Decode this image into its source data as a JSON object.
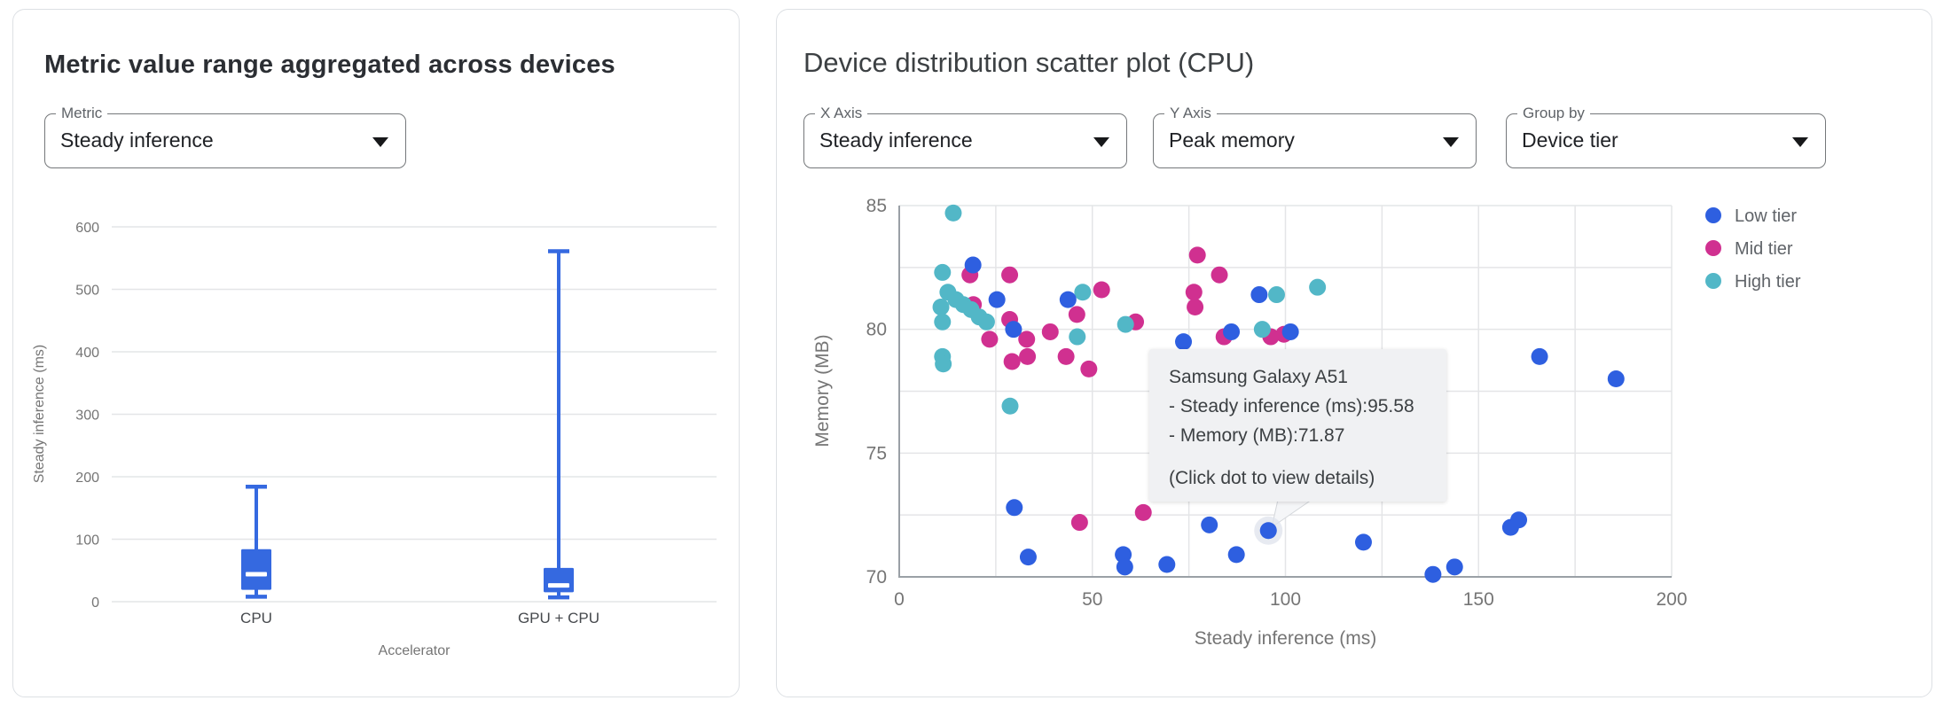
{
  "left_panel": {
    "title": "Metric value range aggregated across devices",
    "metric_select": {
      "label": "Metric",
      "value": "Steady inference"
    }
  },
  "right_panel": {
    "title": "Device distribution scatter plot (CPU)",
    "x_select": {
      "label": "X Axis",
      "value": "Steady inference"
    },
    "y_select": {
      "label": "Y Axis",
      "value": "Peak memory"
    },
    "group_select": {
      "label": "Group by",
      "value": "Device tier"
    },
    "tooltip": {
      "device": "Samsung Galaxy A51",
      "line1": "- Steady inference (ms):95.58",
      "line2": "- Memory (MB):71.87",
      "hint": "(Click dot to view details)"
    }
  },
  "colors": {
    "box_blue": "#3569e0",
    "low_tier_blue": "#2e5fe0",
    "mid_tier_magenta": "#d03090",
    "high_tier_teal": "#52b7c7"
  },
  "chart_data": [
    {
      "type": "boxplot",
      "title": "Metric value range aggregated across devices",
      "xlabel": "Accelerator",
      "ylabel": "Steady inference (ms)",
      "ylim": [
        0,
        600
      ],
      "yticks": [
        0,
        100,
        200,
        300,
        400,
        500,
        600
      ],
      "grid": "horizontal only",
      "categories": [
        "CPU",
        "GPU + CPU"
      ],
      "boxes": [
        {
          "category": "CPU",
          "min": 8,
          "q1": 19,
          "median": 44,
          "q3": 84,
          "max": 184
        },
        {
          "category": "GPU + CPU",
          "min": 7,
          "q1": 15,
          "median": 26,
          "q3": 54,
          "max": 561
        }
      ]
    },
    {
      "type": "scatter",
      "title": "Device distribution scatter plot (CPU)",
      "xlabel": "Steady inference (ms)",
      "ylabel": "Memory (MB)",
      "xlim": [
        0,
        200
      ],
      "ylim": [
        70,
        85
      ],
      "xticks": [
        0,
        50,
        100,
        150,
        200
      ],
      "yticks": [
        70,
        75,
        80,
        85
      ],
      "grid": "on (minor gridlines every 25 ms / 2.5 MB)",
      "legend_position": "top-right",
      "series": [
        {
          "name": "Low tier",
          "color_key": "low_tier_blue",
          "points": [
            [
              19.1,
              82.6
            ],
            [
              25.3,
              81.2
            ],
            [
              43.7,
              81.2
            ],
            [
              93.2,
              81.4
            ],
            [
              73.6,
              79.5
            ],
            [
              86.0,
              79.9
            ],
            [
              101.3,
              79.9
            ],
            [
              29.6,
              80.0
            ],
            [
              29.8,
              72.8
            ],
            [
              33.4,
              70.8
            ],
            [
              58.0,
              70.9
            ],
            [
              58.4,
              70.4
            ],
            [
              69.3,
              70.5
            ],
            [
              80.3,
              72.1
            ],
            [
              87.3,
              70.9
            ],
            [
              95.58,
              71.87
            ],
            [
              120.2,
              71.4
            ],
            [
              138.2,
              70.1
            ],
            [
              143.8,
              70.4
            ],
            [
              158.3,
              72.0
            ],
            [
              160.4,
              72.3
            ],
            [
              165.8,
              78.9
            ],
            [
              185.6,
              78.0
            ]
          ]
        },
        {
          "name": "Mid tier",
          "color_key": "mid_tier_magenta",
          "points": [
            [
              18.3,
              82.2
            ],
            [
              28.6,
              82.2
            ],
            [
              52.4,
              81.6
            ],
            [
              77.2,
              83.0
            ],
            [
              82.9,
              82.2
            ],
            [
              19.2,
              81.0
            ],
            [
              28.6,
              80.4
            ],
            [
              23.4,
              79.6
            ],
            [
              33.0,
              79.6
            ],
            [
              29.2,
              78.7
            ],
            [
              33.2,
              78.9
            ],
            [
              39.1,
              79.9
            ],
            [
              43.2,
              78.9
            ],
            [
              49.1,
              78.4
            ],
            [
              46.0,
              80.6
            ],
            [
              61.2,
              80.3
            ],
            [
              76.3,
              81.5
            ],
            [
              76.6,
              80.9
            ],
            [
              84.1,
              79.7
            ],
            [
              96.2,
              79.7
            ],
            [
              99.6,
              79.8
            ],
            [
              46.7,
              72.2
            ],
            [
              63.2,
              72.6
            ]
          ]
        },
        {
          "name": "High tier",
          "color_key": "high_tier_teal",
          "points": [
            [
              14.0,
              84.7
            ],
            [
              11.2,
              82.3
            ],
            [
              12.6,
              81.5
            ],
            [
              14.7,
              81.2
            ],
            [
              16.6,
              81.0
            ],
            [
              18.6,
              80.8
            ],
            [
              20.7,
              80.5
            ],
            [
              22.6,
              80.3
            ],
            [
              10.8,
              80.9
            ],
            [
              11.2,
              80.3
            ],
            [
              11.2,
              78.9
            ],
            [
              11.4,
              78.6
            ],
            [
              47.5,
              81.5
            ],
            [
              46.1,
              79.7
            ],
            [
              58.6,
              80.2
            ],
            [
              28.7,
              76.9
            ],
            [
              94.0,
              80.0
            ],
            [
              97.7,
              81.4
            ],
            [
              108.3,
              81.7
            ]
          ]
        }
      ],
      "highlight": {
        "series": "Low tier",
        "point": [
          95.58,
          71.87
        ],
        "device": "Samsung Galaxy A51"
      }
    }
  ]
}
